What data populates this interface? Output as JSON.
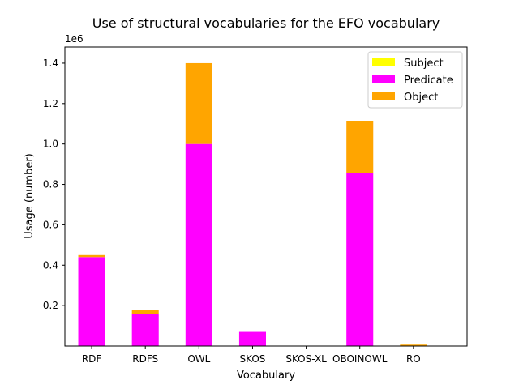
{
  "chart_data": {
    "type": "bar",
    "stacked": true,
    "title": "Use of structural vocabularies for the EFO vocabulary",
    "xlabel": "Vocabulary",
    "ylabel": "Usage (number)",
    "y_scale_label": "1e6",
    "ylim": [
      0,
      1.48
    ],
    "yticks": [
      0.2,
      0.4,
      0.6,
      0.8,
      1.0,
      1.2,
      1.4
    ],
    "ytick_labels": [
      "0.2",
      "0.4",
      "0.6",
      "0.8",
      "1.0",
      "1.2",
      "1.4"
    ],
    "categories": [
      "RDF",
      "RDFS",
      "OWL",
      "SKOS",
      "SKOS-XL",
      "OBOINOWL",
      "RO"
    ],
    "series": [
      {
        "name": "Subject",
        "color": "#ffff00",
        "values": [
          0,
          0,
          0,
          0,
          0,
          0,
          0
        ]
      },
      {
        "name": "Predicate",
        "color": "#ff00ff",
        "values": [
          0.44,
          0.16,
          1.0,
          0.07,
          0,
          0.855,
          0.002
        ]
      },
      {
        "name": "Object",
        "color": "#ffa500",
        "values": [
          0.01,
          0.017,
          0.4,
          0,
          0,
          0.26,
          0.005
        ]
      }
    ],
    "legend_position": "top-right",
    "grid": false
  }
}
